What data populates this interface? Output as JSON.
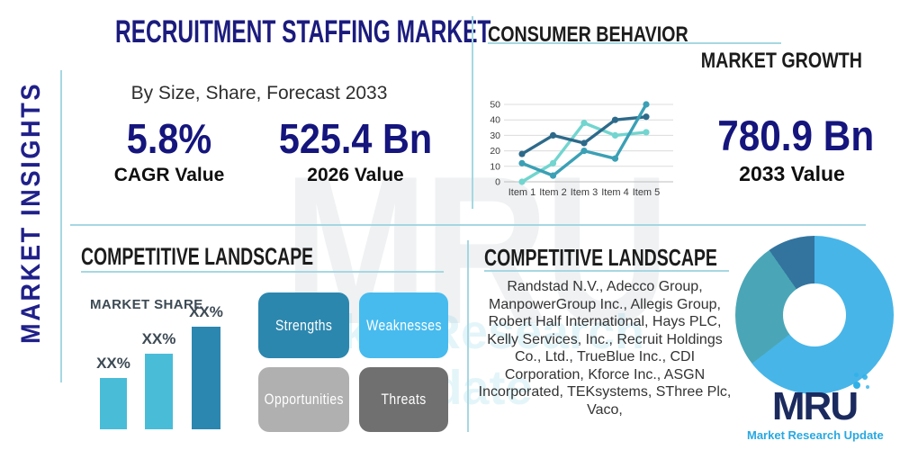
{
  "palette": {
    "navy": "#1b1b7e",
    "teal_divider": "#a6d7e2",
    "heading_black": "#1c1c1c",
    "label_gray": "#3d4a54",
    "logo_navy": "#1b2a5e",
    "logo_blue": "#29a8e0"
  },
  "watermark": {
    "text": "MRU",
    "subtext": "Market Research Update"
  },
  "sidebar": {
    "label": "MARKET INSIGHTS"
  },
  "header": {
    "title": "RECRUITMENT STAFFING MARKET",
    "subtitle": "By Size, Share, Forecast 2033"
  },
  "stats": {
    "cagr_value": "5.8%",
    "cagr_label": "CAGR Value",
    "value_2026": "525.4 Bn",
    "label_2026": "2026 Value",
    "value_2033": "780.9 Bn",
    "label_2033": "2033 Value"
  },
  "consumer_behavior": {
    "title": "CONSUMER BEHAVIOR",
    "subtitle": "MARKET GROWTH"
  },
  "competitive_left": {
    "title": "COMPETITIVE LANDSCAPE",
    "swot": [
      {
        "label": "Strengths",
        "color": "#2c87ae"
      },
      {
        "label": "Weaknesses",
        "color": "#47bbee"
      },
      {
        "label": "Opportunities",
        "color": "#b0b0b0"
      },
      {
        "label": "Threats",
        "color": "#707070"
      }
    ]
  },
  "competitive_right": {
    "title": "COMPETITIVE LANDSCAPE",
    "company_lines": [
      "Randstad N.V., Adecco Group,",
      "ManpowerGroup Inc., Allegis Group,",
      "Robert Half International, Hays PLC,",
      "Kelly Services, Inc., Recruit Holdings",
      "Co., Ltd., TrueBlue Inc., CDI",
      "Corporation, Kforce Inc., ASGN",
      "Incorporated, TEKsystems, SThree Plc,",
      "Vaco,"
    ]
  },
  "logo": {
    "text": "MRU",
    "tagline": "Market Research Update"
  },
  "chart_data": [
    {
      "type": "line",
      "title": "Market growth line chart",
      "x": [
        "Item 1",
        "Item 2",
        "Item 3",
        "Item 4",
        "Item 5"
      ],
      "series": [
        {
          "name": "series-dark",
          "color": "#2d6a8a",
          "values": [
            18,
            30,
            25,
            40,
            42
          ]
        },
        {
          "name": "series-teal",
          "color": "#3ba0b5",
          "values": [
            12,
            4,
            20,
            15,
            50
          ]
        },
        {
          "name": "series-light",
          "color": "#72d5cf",
          "values": [
            0,
            12,
            38,
            30,
            32
          ]
        }
      ],
      "ylim": [
        0,
        50
      ],
      "yticks": [
        0,
        10,
        20,
        30,
        40,
        50
      ],
      "grid": true,
      "legend": "none"
    },
    {
      "type": "bar",
      "title": "MARKET SHARE",
      "categories": [
        "bar-1",
        "bar-2",
        "bar-3"
      ],
      "values": [
        25,
        37,
        50
      ],
      "labels": [
        "XX%",
        "XX%",
        "XX%"
      ],
      "colors": [
        "#49bcd8",
        "#49bcd8",
        "#2c87b0"
      ],
      "ylim": [
        0,
        62
      ],
      "xlabel": "",
      "ylabel": ""
    },
    {
      "type": "pie",
      "title": "Competitive landscape donut",
      "donut": true,
      "values": [
        64.5,
        25.8,
        9.7
      ],
      "colors": [
        "#47b5e8",
        "#4aa6b6",
        "#33749f"
      ]
    }
  ]
}
